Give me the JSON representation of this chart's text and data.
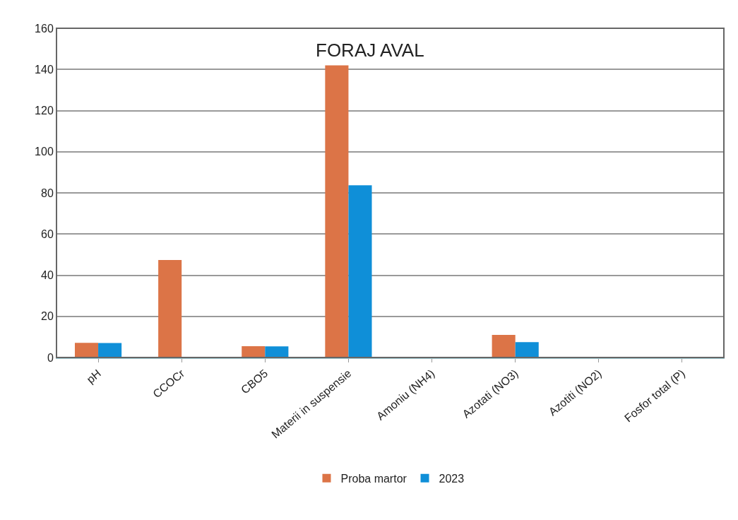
{
  "chart_data": {
    "type": "bar",
    "title": "FORAJ AVAL",
    "categories": [
      "pH",
      "CCOCr",
      "CBO5",
      "Materii in suspensie",
      "Amoniu (NH4)",
      "Azotati (NO3)",
      "Azotiti (NO2)",
      "Fosfor total (P)"
    ],
    "series": [
      {
        "name": "Proba martor",
        "color": "#dc7447",
        "values": [
          7.1,
          47.4,
          5.5,
          142,
          0,
          11,
          0,
          0
        ]
      },
      {
        "name": "2023",
        "color": "#0f8fd8",
        "values": [
          7,
          0,
          5.4,
          83.7,
          0,
          7.5,
          0,
          0
        ]
      }
    ],
    "ylim": [
      0,
      160
    ],
    "yticks": [
      0,
      20,
      40,
      60,
      80,
      100,
      120,
      140,
      160
    ],
    "grid": "y",
    "legend": "bottom"
  }
}
